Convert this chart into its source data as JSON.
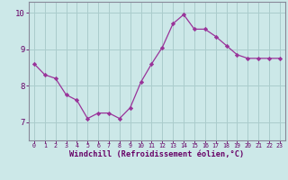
{
  "x": [
    0,
    1,
    2,
    3,
    4,
    5,
    6,
    7,
    8,
    9,
    10,
    11,
    12,
    13,
    14,
    15,
    16,
    17,
    18,
    19,
    20,
    21,
    22,
    23
  ],
  "y": [
    8.6,
    8.3,
    8.2,
    7.75,
    7.6,
    7.1,
    7.25,
    7.25,
    7.1,
    7.4,
    8.1,
    8.6,
    9.05,
    9.7,
    9.95,
    9.55,
    9.55,
    9.35,
    9.1,
    8.85,
    8.75,
    8.75,
    8.75,
    8.75
  ],
  "line_color": "#993399",
  "marker_color": "#993399",
  "bg_color": "#cce8e8",
  "grid_color": "#aacccc",
  "axis_color": "#888899",
  "label_color": "#660066",
  "xlabel": "Windchill (Refroidissement éolien,°C)",
  "xlim_min": -0.5,
  "xlim_max": 23.5,
  "ylim_min": 6.5,
  "ylim_max": 10.3,
  "yticks": [
    7,
    8,
    9,
    10
  ],
  "xticks": [
    0,
    1,
    2,
    3,
    4,
    5,
    6,
    7,
    8,
    9,
    10,
    11,
    12,
    13,
    14,
    15,
    16,
    17,
    18,
    19,
    20,
    21,
    22,
    23
  ]
}
